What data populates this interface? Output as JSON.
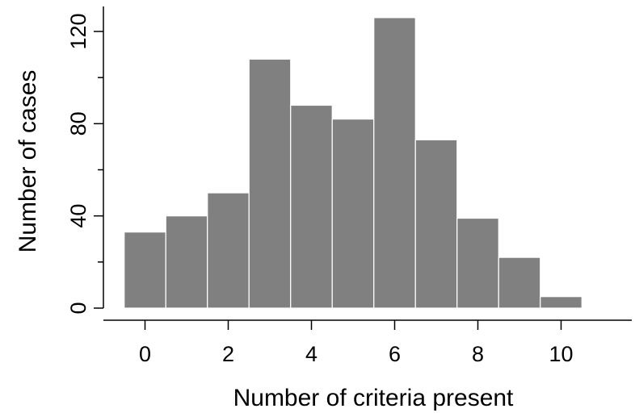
{
  "chart_data": {
    "type": "bar",
    "title": "",
    "xlabel": "Number of criteria present",
    "ylabel": "Number of cases",
    "x": [
      0,
      1,
      2,
      3,
      4,
      5,
      6,
      7,
      8,
      9,
      10
    ],
    "values": [
      33,
      40,
      50,
      108,
      88,
      82,
      126,
      73,
      39,
      22,
      5
    ],
    "xlim": [
      -0.5,
      11.5
    ],
    "ylim": [
      0,
      130
    ],
    "x_ticks": [
      0,
      2,
      4,
      6,
      8,
      10
    ],
    "x_tick_labels": [
      "0",
      "2",
      "4",
      "6",
      "8",
      "10"
    ],
    "y_major_ticks": [
      0,
      40,
      80,
      120
    ],
    "y_major_tick_labels": [
      "0",
      "40",
      "80",
      "120"
    ],
    "y_minor_ticks": [
      20,
      60,
      100
    ],
    "grid": false,
    "bar_color": "#808080",
    "bar_edge_color": "#ffffff"
  }
}
